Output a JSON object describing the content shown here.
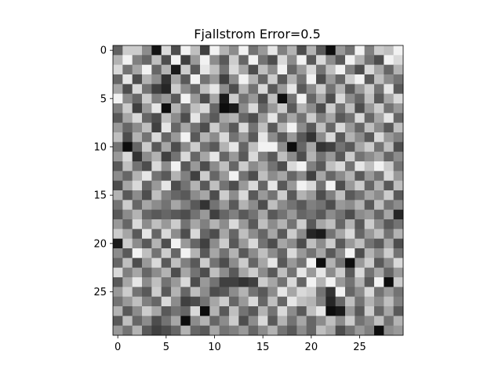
{
  "chart_data": {
    "type": "heatmap",
    "title": "Fjallstrom Error=0.5",
    "xlabel": "",
    "ylabel": "",
    "colormap": "gray",
    "value_range": [
      0,
      1
    ],
    "rows": 30,
    "cols": 30,
    "x_ticks": [
      0,
      5,
      10,
      15,
      20,
      25
    ],
    "y_ticks": [
      0,
      5,
      10,
      15,
      20,
      25
    ],
    "xlim": [
      -0.5,
      29.5
    ],
    "ylim": [
      29.5,
      -0.5
    ],
    "grid": false,
    "values": [
      [
        0.38,
        0.8,
        0.8,
        0.55,
        0.08,
        0.85,
        0.3,
        0.95,
        0.75,
        0.25,
        0.95,
        0.7,
        0.55,
        0.95,
        0.45,
        0.6,
        0.9,
        0.5,
        0.7,
        0.3,
        0.7,
        0.35,
        0.05,
        0.6,
        0.45,
        0.95,
        0.5,
        0.8,
        0.75,
        0.95
      ],
      [
        0.7,
        0.95,
        0.5,
        0.4,
        0.75,
        0.3,
        0.95,
        0.25,
        0.6,
        0.95,
        0.55,
        0.35,
        0.8,
        0.4,
        0.95,
        0.45,
        0.3,
        0.85,
        0.55,
        0.95,
        0.35,
        0.85,
        0.55,
        0.35,
        0.95,
        0.7,
        0.45,
        0.3,
        0.95,
        0.85
      ],
      [
        0.85,
        0.45,
        0.65,
        0.95,
        0.4,
        0.7,
        0.1,
        0.8,
        0.35,
        0.9,
        0.75,
        0.45,
        0.85,
        0.65,
        0.3,
        0.75,
        0.55,
        0.95,
        0.4,
        0.6,
        0.85,
        0.45,
        0.75,
        0.95,
        0.5,
        0.3,
        0.85,
        0.65,
        0.4,
        0.7
      ],
      [
        0.4,
        0.9,
        0.3,
        0.7,
        0.55,
        0.2,
        0.65,
        0.35,
        0.95,
        0.45,
        0.6,
        0.25,
        0.55,
        0.95,
        0.7,
        0.4,
        0.8,
        0.35,
        0.7,
        0.45,
        0.95,
        0.3,
        0.6,
        0.4,
        0.8,
        0.95,
        0.35,
        0.75,
        0.55,
        0.45
      ],
      [
        0.65,
        0.3,
        0.85,
        0.45,
        0.25,
        0.15,
        0.8,
        0.55,
        0.4,
        0.75,
        0.9,
        0.55,
        0.3,
        0.7,
        0.45,
        0.85,
        0.35,
        0.6,
        0.9,
        0.35,
        0.55,
        0.8,
        0.45,
        0.7,
        0.35,
        0.6,
        0.8,
        0.45,
        0.9,
        0.35
      ],
      [
        0.95,
        0.55,
        0.4,
        0.8,
        0.5,
        0.6,
        0.35,
        0.95,
        0.6,
        0.3,
        0.65,
        0.1,
        0.8,
        0.45,
        0.6,
        0.3,
        0.75,
        0.05,
        0.45,
        0.95,
        0.4,
        0.65,
        0.3,
        0.85,
        0.55,
        0.4,
        0.75,
        0.35,
        0.65,
        0.85
      ],
      [
        0.5,
        0.8,
        0.25,
        0.6,
        0.9,
        0.05,
        0.7,
        0.45,
        0.75,
        0.85,
        0.4,
        0.05,
        0.1,
        0.55,
        0.85,
        0.4,
        0.6,
        0.8,
        0.35,
        0.7,
        0.55,
        0.3,
        0.8,
        0.45,
        0.75,
        0.3,
        0.6,
        0.8,
        0.45,
        0.6
      ],
      [
        0.35,
        0.65,
        0.85,
        0.4,
        0.3,
        0.75,
        0.55,
        0.3,
        0.9,
        0.5,
        0.35,
        0.65,
        0.7,
        0.4,
        0.3,
        0.6,
        0.9,
        0.45,
        0.65,
        0.45,
        0.8,
        0.5,
        0.65,
        0.35,
        0.45,
        0.85,
        0.4,
        0.65,
        0.9,
        0.4
      ],
      [
        0.6,
        0.4,
        0.55,
        0.75,
        0.25,
        0.9,
        0.4,
        0.65,
        0.45,
        0.3,
        0.8,
        0.55,
        0.35,
        0.85,
        0.45,
        0.75,
        0.35,
        0.7,
        0.95,
        0.55,
        0.35,
        0.75,
        0.4,
        0.85,
        0.6,
        0.4,
        0.75,
        0.55,
        0.35,
        0.75
      ],
      [
        0.75,
        0.3,
        0.7,
        0.45,
        0.85,
        0.4,
        0.6,
        0.95,
        0.35,
        0.7,
        0.55,
        0.85,
        0.45,
        0.6,
        0.35,
        0.9,
        0.55,
        0.35,
        0.6,
        0.35,
        0.2,
        0.55,
        0.85,
        0.35,
        0.7,
        0.55,
        0.35,
        0.85,
        0.6,
        0.5
      ],
      [
        0.45,
        0.05,
        0.4,
        0.8,
        0.35,
        0.65,
        0.3,
        0.55,
        0.8,
        0.45,
        0.35,
        0.7,
        0.9,
        0.4,
        0.75,
        0.95,
        0.95,
        0.55,
        0.05,
        0.4,
        0.65,
        0.2,
        0.25,
        0.45,
        0.35,
        0.65,
        0.8,
        0.45,
        0.75,
        0.3
      ],
      [
        0.6,
        0.85,
        0.2,
        0.55,
        0.7,
        0.25,
        0.45,
        0.85,
        0.4,
        0.65,
        0.9,
        0.4,
        0.6,
        0.35,
        0.85,
        0.5,
        0.35,
        0.75,
        0.55,
        0.3,
        0.7,
        0.45,
        0.6,
        0.35,
        0.8,
        0.45,
        0.55,
        0.65,
        0.4,
        0.55
      ],
      [
        0.35,
        0.75,
        0.45,
        0.3,
        0.85,
        0.55,
        0.95,
        0.35,
        0.6,
        0.3,
        0.55,
        0.75,
        0.4,
        0.8,
        0.55,
        0.65,
        0.45,
        0.3,
        0.85,
        0.95,
        0.5,
        0.35,
        0.75,
        0.85,
        0.45,
        0.9,
        0.75,
        0.95,
        0.8,
        0.45
      ],
      [
        0.55,
        0.4,
        0.7,
        0.9,
        0.45,
        0.35,
        0.7,
        0.5,
        0.25,
        0.8,
        0.4,
        0.6,
        0.95,
        0.45,
        0.3,
        0.75,
        0.55,
        0.65,
        0.4,
        0.55,
        0.25,
        0.65,
        0.4,
        0.55,
        0.7,
        0.35,
        0.6,
        0.45,
        0.85,
        0.6
      ],
      [
        0.3,
        0.65,
        0.85,
        0.4,
        0.6,
        0.9,
        0.3,
        0.45,
        0.7,
        0.35,
        0.75,
        0.45,
        0.3,
        0.6,
        0.85,
        0.4,
        0.9,
        0.35,
        0.6,
        0.95,
        0.85,
        0.45,
        0.95,
        0.3,
        0.6,
        0.8,
        0.4,
        0.7,
        0.35,
        0.75
      ],
      [
        0.7,
        0.35,
        0.55,
        0.3,
        0.75,
        0.5,
        0.4,
        0.35,
        0.55,
        0.65,
        0.3,
        0.8,
        0.55,
        0.85,
        0.35,
        0.6,
        0.45,
        0.8,
        0.35,
        0.7,
        0.6,
        0.3,
        0.5,
        0.75,
        0.35,
        0.45,
        0.65,
        0.55,
        0.8,
        0.35
      ],
      [
        0.45,
        0.8,
        0.4,
        0.65,
        0.55,
        0.45,
        0.65,
        0.5,
        0.35,
        0.2,
        0.45,
        0.6,
        0.35,
        0.7,
        0.55,
        0.3,
        0.75,
        0.55,
        0.45,
        0.35,
        0.5,
        0.45,
        0.3,
        0.6,
        0.55,
        0.7,
        0.35,
        0.75,
        0.45,
        0.55
      ],
      [
        0.35,
        0.55,
        0.7,
        0.4,
        0.35,
        0.4,
        0.35,
        0.3,
        0.45,
        0.6,
        0.25,
        0.4,
        0.5,
        0.35,
        0.45,
        0.65,
        0.35,
        0.45,
        0.6,
        0.4,
        0.45,
        0.35,
        0.55,
        0.45,
        0.3,
        0.55,
        0.6,
        0.4,
        0.65,
        0.15
      ],
      [
        0.6,
        0.4,
        0.85,
        0.55,
        0.75,
        0.6,
        0.8,
        0.45,
        0.65,
        0.5,
        0.7,
        0.55,
        0.85,
        0.6,
        0.35,
        0.75,
        0.55,
        0.7,
        0.45,
        0.8,
        0.35,
        0.65,
        0.75,
        0.4,
        0.7,
        0.35,
        0.8,
        0.55,
        0.35,
        0.45
      ],
      [
        0.8,
        0.65,
        0.35,
        0.9,
        0.4,
        0.85,
        0.55,
        0.3,
        0.85,
        0.4,
        0.3,
        0.65,
        0.4,
        0.75,
        0.55,
        0.4,
        0.65,
        0.35,
        0.8,
        0.55,
        0.15,
        0.1,
        0.45,
        0.65,
        0.85,
        0.4,
        0.6,
        0.75,
        0.45,
        0.7
      ],
      [
        0.1,
        0.8,
        0.55,
        0.35,
        0.7,
        0.3,
        0.95,
        0.6,
        0.4,
        0.25,
        0.55,
        0.8,
        0.35,
        0.6,
        0.85,
        0.45,
        0.3,
        0.65,
        0.55,
        0.3,
        0.75,
        0.55,
        0.8,
        0.35,
        0.6,
        0.75,
        0.45,
        0.35,
        0.65,
        0.3
      ],
      [
        0.55,
        0.35,
        0.95,
        0.75,
        0.45,
        0.8,
        0.4,
        0.95,
        0.7,
        0.35,
        0.65,
        0.45,
        0.7,
        0.35,
        0.55,
        0.75,
        0.55,
        0.4,
        0.85,
        0.6,
        0.45,
        0.65,
        0.35,
        0.55,
        0.95,
        0.3,
        0.7,
        0.55,
        0.8,
        0.45
      ],
      [
        0.4,
        0.75,
        0.3,
        0.6,
        0.85,
        0.35,
        0.75,
        0.5,
        0.35,
        0.8,
        0.45,
        0.3,
        0.55,
        0.8,
        0.4,
        0.65,
        0.9,
        0.35,
        0.6,
        0.45,
        0.95,
        0.05,
        0.7,
        0.45,
        0.05,
        0.6,
        0.8,
        0.35,
        0.55,
        0.85
      ],
      [
        0.85,
        0.5,
        0.65,
        0.4,
        0.55,
        0.7,
        0.3,
        0.65,
        0.45,
        0.3,
        0.75,
        0.55,
        0.35,
        0.65,
        0.8,
        0.55,
        0.35,
        0.75,
        0.45,
        0.9,
        0.6,
        0.9,
        0.55,
        0.8,
        0.35,
        0.85,
        0.45,
        0.65,
        0.4,
        0.6
      ],
      [
        0.35,
        0.65,
        0.9,
        0.55,
        0.75,
        0.45,
        0.6,
        0.85,
        0.3,
        0.6,
        0.45,
        0.25,
        0.25,
        0.2,
        0.25,
        0.8,
        0.65,
        0.45,
        0.85,
        0.4,
        0.95,
        0.7,
        0.95,
        0.6,
        0.45,
        0.7,
        0.35,
        0.95,
        0.05,
        0.8
      ],
      [
        0.6,
        0.8,
        0.45,
        0.35,
        0.8,
        0.35,
        0.7,
        0.4,
        0.75,
        0.55,
        0.3,
        0.35,
        0.55,
        0.7,
        0.45,
        0.35,
        0.55,
        0.9,
        0.65,
        0.85,
        0.8,
        0.45,
        0.2,
        0.95,
        0.4,
        0.55,
        0.85,
        0.45,
        0.6,
        0.45
      ],
      [
        0.45,
        0.6,
        0.75,
        0.5,
        0.4,
        0.85,
        0.55,
        0.25,
        0.3,
        0.45,
        0.65,
        0.8,
        0.4,
        0.6,
        0.85,
        0.4,
        0.75,
        0.4,
        0.9,
        0.75,
        0.7,
        0.5,
        0.15,
        0.4,
        0.75,
        0.45,
        0.7,
        0.55,
        0.75,
        0.5
      ],
      [
        0.7,
        0.35,
        0.55,
        0.8,
        0.65,
        0.35,
        0.45,
        0.4,
        0.85,
        0.05,
        0.7,
        0.35,
        0.75,
        0.45,
        0.35,
        0.7,
        0.45,
        0.85,
        0.55,
        0.35,
        0.75,
        0.9,
        0.05,
        0.1,
        0.6,
        0.35,
        0.8,
        0.4,
        0.65,
        0.35
      ],
      [
        0.35,
        0.75,
        0.4,
        0.55,
        0.3,
        0.45,
        0.65,
        0.05,
        0.55,
        0.7,
        0.4,
        0.55,
        0.8,
        0.3,
        0.55,
        0.85,
        0.35,
        0.7,
        0.45,
        0.65,
        0.4,
        0.55,
        0.75,
        0.55,
        0.8,
        0.45,
        0.55,
        0.75,
        0.45,
        0.7
      ],
      [
        0.6,
        0.45,
        0.7,
        0.35,
        0.25,
        0.3,
        0.4,
        0.7,
        0.4,
        0.35,
        0.65,
        0.45,
        0.5,
        0.6,
        0.4,
        0.55,
        0.7,
        0.45,
        0.35,
        0.55,
        0.4,
        0.75,
        0.65,
        0.3,
        0.45,
        0.6,
        0.5,
        0.05,
        0.55,
        0.6
      ]
    ]
  }
}
